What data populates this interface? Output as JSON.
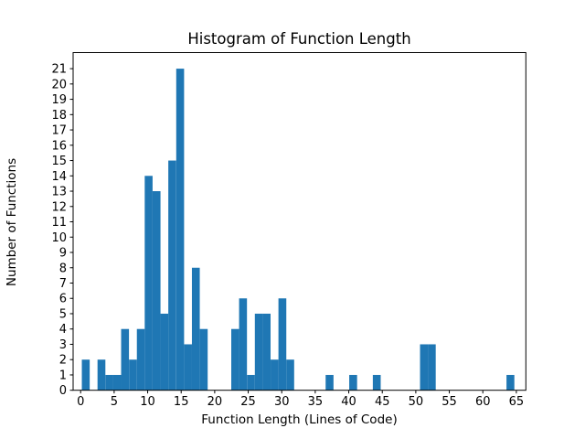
{
  "chart_data": {
    "type": "bar",
    "subtype": "histogram",
    "title": "Histogram of Function Length",
    "xlabel": "Function Length (Lines of Code)",
    "ylabel": "Number of Functions",
    "xlim": [
      -1.12,
      66.42
    ],
    "ylim": [
      0,
      22.05
    ],
    "x_ticks": [
      0,
      5,
      10,
      15,
      20,
      25,
      30,
      35,
      40,
      45,
      50,
      55,
      60,
      65
    ],
    "y_ticks": [
      0,
      1,
      2,
      3,
      4,
      5,
      6,
      7,
      8,
      9,
      10,
      11,
      12,
      13,
      14,
      15,
      16,
      17,
      18,
      19,
      20,
      21
    ],
    "grid": false,
    "legend": null,
    "bar_color": "#1f77b4",
    "axis_color": "#000000",
    "background_color": "#ffffff",
    "bin_width": 1.173,
    "bars": [
      {
        "x": 0.18,
        "count": 2
      },
      {
        "x": 2.52,
        "count": 2
      },
      {
        "x": 3.7,
        "count": 1
      },
      {
        "x": 4.87,
        "count": 1
      },
      {
        "x": 6.04,
        "count": 4
      },
      {
        "x": 7.22,
        "count": 2
      },
      {
        "x": 8.39,
        "count": 4
      },
      {
        "x": 9.56,
        "count": 14
      },
      {
        "x": 10.74,
        "count": 13
      },
      {
        "x": 11.91,
        "count": 5
      },
      {
        "x": 13.08,
        "count": 15
      },
      {
        "x": 14.26,
        "count": 21
      },
      {
        "x": 15.43,
        "count": 3
      },
      {
        "x": 16.6,
        "count": 8
      },
      {
        "x": 17.78,
        "count": 4
      },
      {
        "x": 22.47,
        "count": 4
      },
      {
        "x": 23.64,
        "count": 6
      },
      {
        "x": 24.82,
        "count": 1
      },
      {
        "x": 25.99,
        "count": 5
      },
      {
        "x": 27.16,
        "count": 5
      },
      {
        "x": 28.34,
        "count": 2
      },
      {
        "x": 29.51,
        "count": 6
      },
      {
        "x": 30.68,
        "count": 2
      },
      {
        "x": 36.55,
        "count": 1
      },
      {
        "x": 40.07,
        "count": 1
      },
      {
        "x": 43.59,
        "count": 1
      },
      {
        "x": 50.63,
        "count": 3
      },
      {
        "x": 51.8,
        "count": 3
      },
      {
        "x": 63.53,
        "count": 1
      }
    ]
  }
}
